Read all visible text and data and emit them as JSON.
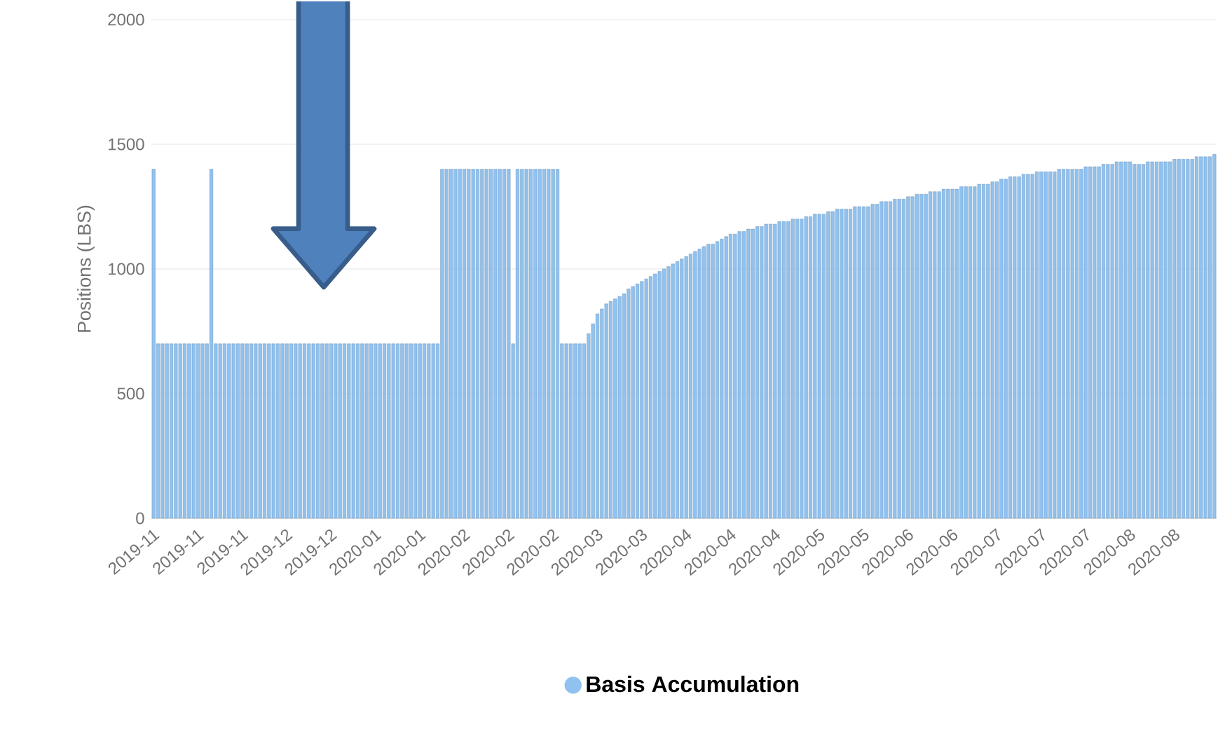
{
  "chart_data": {
    "type": "bar",
    "ylabel": "Positions (LBS)",
    "categories": [
      "2019-11",
      null,
      null,
      null,
      null,
      null,
      null,
      null,
      null,
      null,
      "2019-11",
      null,
      null,
      null,
      null,
      null,
      null,
      null,
      null,
      null,
      "2019-11",
      null,
      null,
      null,
      null,
      null,
      null,
      null,
      null,
      null,
      "2019-12",
      null,
      null,
      null,
      null,
      null,
      null,
      null,
      null,
      null,
      "2019-12",
      null,
      null,
      null,
      null,
      null,
      null,
      null,
      null,
      null,
      "2020-01",
      null,
      null,
      null,
      null,
      null,
      null,
      null,
      null,
      null,
      "2020-01",
      null,
      null,
      null,
      null,
      null,
      null,
      null,
      null,
      null,
      "2020-02",
      null,
      null,
      null,
      null,
      null,
      null,
      null,
      null,
      null,
      "2020-02",
      null,
      null,
      null,
      null,
      null,
      null,
      null,
      null,
      null,
      "2020-02",
      null,
      null,
      null,
      null,
      null,
      null,
      null,
      null,
      null,
      "2020-03",
      null,
      null,
      null,
      null,
      null,
      null,
      null,
      null,
      null,
      "2020-03",
      null,
      null,
      null,
      null,
      null,
      null,
      null,
      null,
      null,
      "2020-04",
      null,
      null,
      null,
      null,
      null,
      null,
      null,
      null,
      null,
      "2020-04",
      null,
      null,
      null,
      null,
      null,
      null,
      null,
      null,
      null,
      "2020-04",
      null,
      null,
      null,
      null,
      null,
      null,
      null,
      null,
      null,
      "2020-05",
      null,
      null,
      null,
      null,
      null,
      null,
      null,
      null,
      null,
      "2020-05",
      null,
      null,
      null,
      null,
      null,
      null,
      null,
      null,
      null,
      "2020-06",
      null,
      null,
      null,
      null,
      null,
      null,
      null,
      null,
      null,
      "2020-06",
      null,
      null,
      null,
      null,
      null,
      null,
      null,
      null,
      null,
      "2020-07",
      null,
      null,
      null,
      null,
      null,
      null,
      null,
      null,
      null,
      "2020-07",
      null,
      null,
      null,
      null,
      null,
      null,
      null,
      null,
      null,
      "2020-07",
      null,
      null,
      null,
      null,
      null,
      null,
      null,
      null,
      null,
      "2020-08",
      null,
      null,
      null,
      null,
      null,
      null,
      null,
      null,
      null,
      "2020-08",
      null,
      null,
      null,
      null,
      null,
      null,
      null,
      null,
      null
    ],
    "series": [
      {
        "name": "Basis Accumulation",
        "color": "#90c2f0",
        "values": [
          1400,
          700,
          700,
          700,
          700,
          700,
          700,
          700,
          700,
          700,
          700,
          700,
          700,
          1400,
          700,
          700,
          700,
          700,
          700,
          700,
          700,
          700,
          700,
          700,
          700,
          700,
          700,
          700,
          700,
          700,
          700,
          700,
          700,
          700,
          700,
          700,
          700,
          700,
          700,
          700,
          700,
          700,
          700,
          700,
          700,
          700,
          700,
          700,
          700,
          700,
          700,
          700,
          700,
          700,
          700,
          700,
          700,
          700,
          700,
          700,
          700,
          700,
          700,
          700,
          700,
          1400,
          1400,
          1400,
          1400,
          1400,
          1400,
          1400,
          1400,
          1400,
          1400,
          1400,
          1400,
          1400,
          1400,
          1400,
          1400,
          700,
          1400,
          1400,
          1400,
          1400,
          1400,
          1400,
          1400,
          1400,
          1400,
          1400,
          700,
          700,
          700,
          700,
          700,
          700,
          740,
          780,
          820,
          840,
          860,
          870,
          880,
          890,
          900,
          920,
          930,
          940,
          950,
          960,
          970,
          980,
          990,
          1000,
          1010,
          1020,
          1030,
          1040,
          1050,
          1060,
          1070,
          1080,
          1090,
          1100,
          1100,
          1110,
          1120,
          1130,
          1140,
          1140,
          1150,
          1150,
          1160,
          1160,
          1170,
          1170,
          1180,
          1180,
          1180,
          1190,
          1190,
          1190,
          1200,
          1200,
          1200,
          1210,
          1210,
          1220,
          1220,
          1220,
          1230,
          1230,
          1240,
          1240,
          1240,
          1240,
          1250,
          1250,
          1250,
          1250,
          1260,
          1260,
          1270,
          1270,
          1270,
          1280,
          1280,
          1280,
          1290,
          1290,
          1300,
          1300,
          1300,
          1310,
          1310,
          1310,
          1320,
          1320,
          1320,
          1320,
          1330,
          1330,
          1330,
          1330,
          1340,
          1340,
          1340,
          1350,
          1350,
          1360,
          1360,
          1370,
          1370,
          1370,
          1380,
          1380,
          1380,
          1390,
          1390,
          1390,
          1390,
          1390,
          1400,
          1400,
          1400,
          1400,
          1400,
          1400,
          1410,
          1410,
          1410,
          1410,
          1420,
          1420,
          1420,
          1430,
          1430,
          1430,
          1430,
          1420,
          1420,
          1420,
          1430,
          1430,
          1430,
          1430,
          1430,
          1430,
          1440,
          1440,
          1440,
          1440,
          1440,
          1450,
          1450,
          1450,
          1450,
          1460
        ]
      }
    ],
    "ylim": [
      0,
      2000
    ],
    "yticks": [
      0,
      500,
      1000,
      1500,
      2000
    ],
    "grid": "y",
    "legend": "bottom"
  }
}
